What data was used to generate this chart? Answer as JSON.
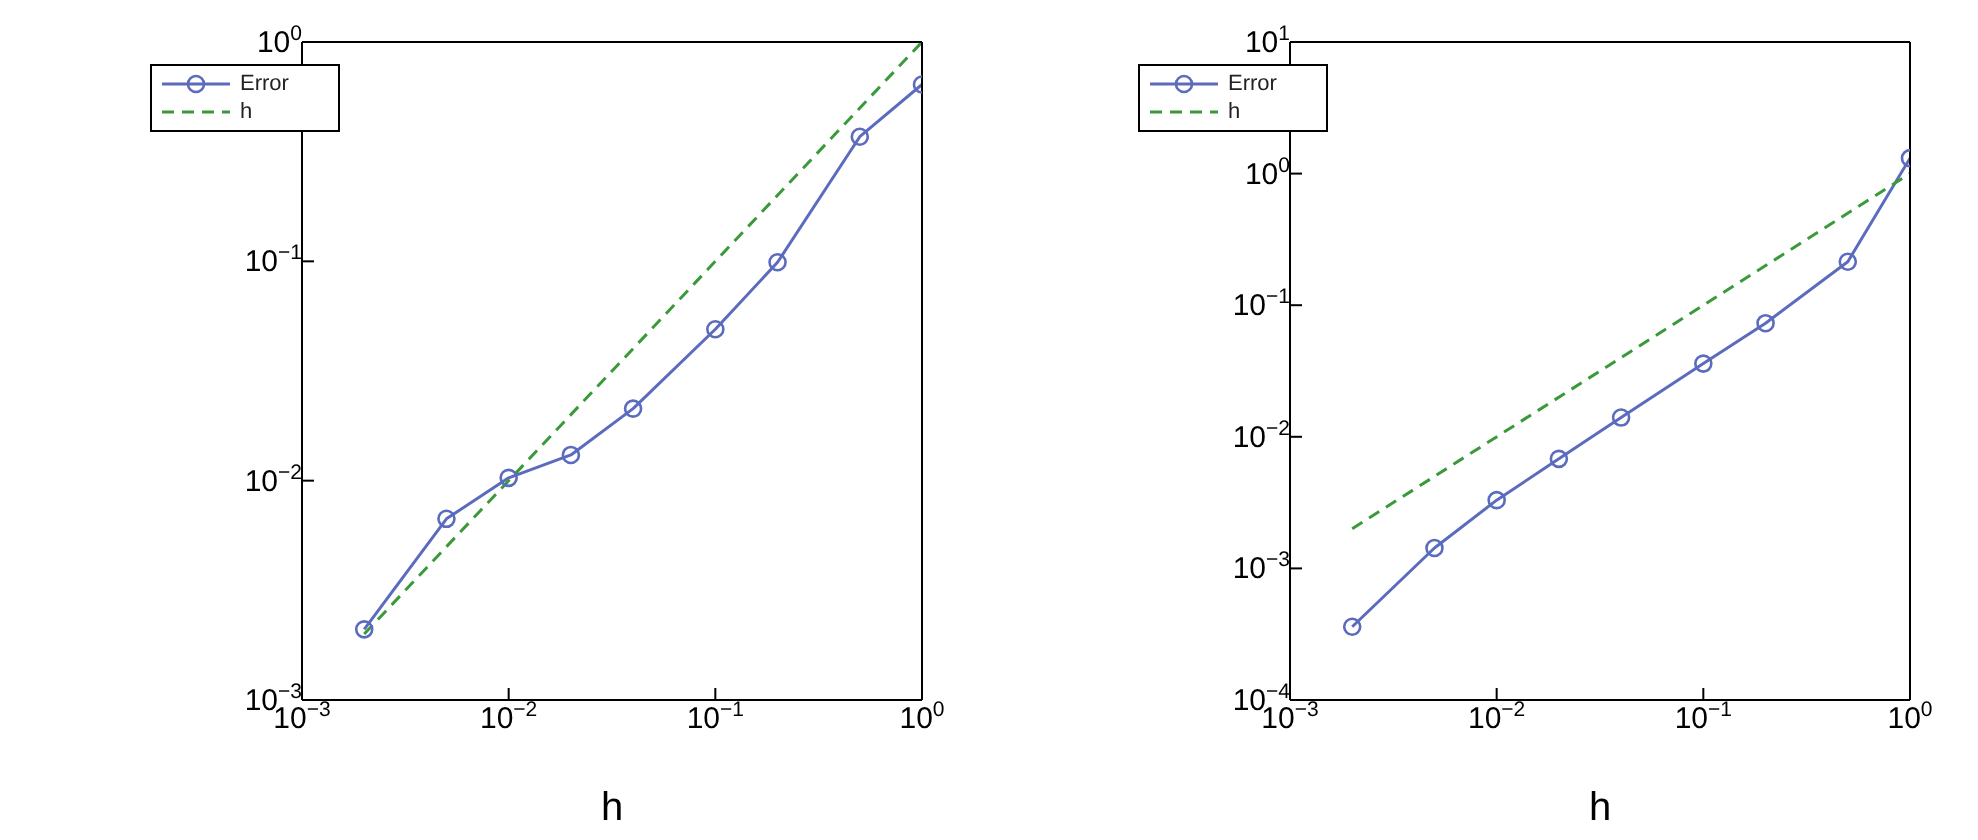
{
  "chart_data": [
    {
      "type": "line",
      "xlabel": "h",
      "log": "xy",
      "legend": "top left",
      "xlim": [
        0.001,
        1
      ],
      "ylim": [
        0.001,
        1
      ],
      "xticks": [
        {
          "value": 0.001,
          "label": "10$^{−3}$"
        },
        {
          "value": 0.01,
          "label": "10$^{−2}$"
        },
        {
          "value": 0.1,
          "label": "10$^{−1}$"
        },
        {
          "value": 1,
          "label": "10$^{0}$"
        }
      ],
      "yticks": [
        {
          "value": 0.001,
          "label": "10$^{−3}$"
        },
        {
          "value": 0.01,
          "label": "10$^{−2}$"
        },
        {
          "value": 0.1,
          "label": "10$^{−1}$"
        },
        {
          "value": 1,
          "label": "10$^{0}$"
        }
      ],
      "series": [
        {
          "name": "Error",
          "color": "#5b6bbd",
          "marker": "circle",
          "line_style": "solid",
          "x": [
            0.002,
            0.005,
            0.01,
            0.02,
            0.04,
            0.1,
            0.2,
            0.5,
            1
          ],
          "values": [
            0.0021,
            0.0067,
            0.0103,
            0.0131,
            0.0213,
            0.049,
            0.099,
            0.37,
            0.64
          ]
        },
        {
          "name": "h",
          "color": "#3a9a3a",
          "marker": "none",
          "line_style": "dashed",
          "x": [
            0.002,
            1
          ],
          "values": [
            0.002,
            1
          ]
        }
      ]
    },
    {
      "type": "line",
      "xlabel": "h",
      "log": "xy",
      "legend": "top left",
      "xlim": [
        0.001,
        1
      ],
      "ylim": [
        0.0001,
        10
      ],
      "xticks": [
        {
          "value": 0.001,
          "label": "10$^{−3}$"
        },
        {
          "value": 0.01,
          "label": "10$^{−2}$"
        },
        {
          "value": 0.1,
          "label": "10$^{−1}$"
        },
        {
          "value": 1,
          "label": "10$^{0}$"
        }
      ],
      "yticks": [
        {
          "value": 0.0001,
          "label": "10$^{−4}$"
        },
        {
          "value": 0.001,
          "label": "10$^{−3}$"
        },
        {
          "value": 0.01,
          "label": "10$^{−2}$"
        },
        {
          "value": 0.1,
          "label": "10$^{−1}$"
        },
        {
          "value": 1,
          "label": "10$^{0}$"
        },
        {
          "value": 10,
          "label": "10$^{1}$"
        }
      ],
      "series": [
        {
          "name": "Error",
          "color": "#5b6bbd",
          "marker": "circle",
          "line_style": "solid",
          "x": [
            0.002,
            0.005,
            0.01,
            0.02,
            0.04,
            0.1,
            0.2,
            0.5,
            1
          ],
          "values": [
            0.00036,
            0.00143,
            0.0033,
            0.0068,
            0.014,
            0.036,
            0.073,
            0.214,
            1.31
          ]
        },
        {
          "name": "h",
          "color": "#3a9a3a",
          "marker": "none",
          "line_style": "dashed",
          "x": [
            0.002,
            1
          ],
          "values": [
            0.002,
            1
          ]
        }
      ]
    }
  ]
}
